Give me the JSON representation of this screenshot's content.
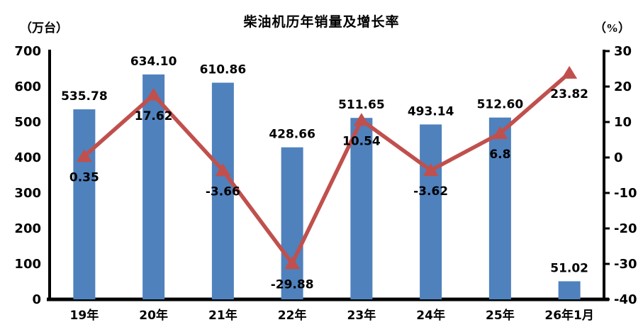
{
  "title": "柴油机历年销量及增长率",
  "left_axis_unit": "（万台）",
  "right_axis_unit": "（%）",
  "chart_data": {
    "type": "bar+line",
    "title": "柴油机历年销量及增长率",
    "categories": [
      "19年",
      "20年",
      "21年",
      "22年",
      "23年",
      "24年",
      "25年",
      "26年1月"
    ],
    "series": [
      {
        "name": "销量(万台)",
        "type": "bar",
        "color": "#4F81BD",
        "values": [
          535.78,
          634.1,
          610.86,
          428.66,
          511.65,
          493.14,
          512.6,
          51.02
        ],
        "labels": [
          "535.78",
          "634.10",
          "610.86",
          "428.66",
          "511.65",
          "493.14",
          "512.60",
          "51.02"
        ]
      },
      {
        "name": "增长率(%)",
        "type": "line",
        "color": "#C0504D",
        "marker": "triangle-up",
        "values": [
          0.35,
          17.62,
          -3.66,
          -29.88,
          10.54,
          -3.62,
          6.8,
          23.82
        ],
        "labels": [
          "0.35",
          "17.62",
          "-3.66",
          "-29.88",
          "10.54",
          "-3.62",
          "6.8",
          "23.82"
        ]
      }
    ],
    "left_axis": {
      "min": 0,
      "max": 700,
      "step": 100,
      "ticks": [
        "0",
        "100",
        "200",
        "300",
        "400",
        "500",
        "600",
        "700"
      ]
    },
    "right_axis": {
      "min": -40,
      "max": 30,
      "step": 10,
      "ticks": [
        "-40",
        "-30",
        "-20",
        "-10",
        "0",
        "10",
        "20",
        "30"
      ]
    },
    "grid": "off",
    "legend": "none"
  }
}
